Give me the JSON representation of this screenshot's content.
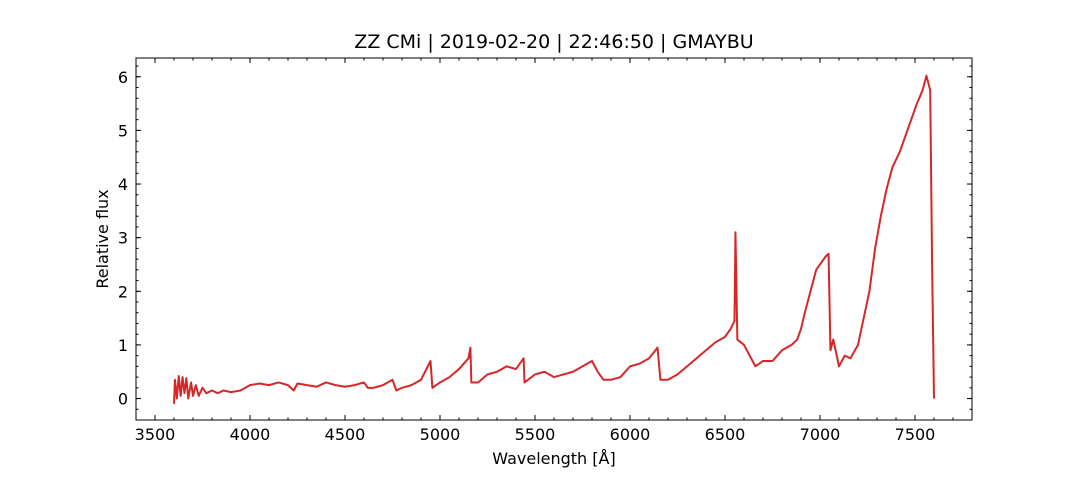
{
  "chart_data": {
    "type": "line",
    "title": "ZZ CMi | 2019-02-20 | 22:46:50 | GMAYBU",
    "x_label": "Wavelength [Å]",
    "y_label": "Relative flux",
    "x": [
      3600,
      3605,
      3615,
      3625,
      3635,
      3645,
      3655,
      3665,
      3675,
      3690,
      3700,
      3715,
      3730,
      3750,
      3770,
      3800,
      3830,
      3860,
      3900,
      3950,
      4000,
      4050,
      4100,
      4150,
      4200,
      4230,
      4250,
      4300,
      4350,
      4400,
      4450,
      4500,
      4550,
      4600,
      4620,
      4650,
      4700,
      4750,
      4770,
      4800,
      4850,
      4900,
      4950,
      4960,
      5000,
      5050,
      5100,
      5150,
      5160,
      5165,
      5200,
      5250,
      5300,
      5350,
      5400,
      5440,
      5445,
      5500,
      5550,
      5600,
      5650,
      5700,
      5750,
      5800,
      5830,
      5860,
      5900,
      5950,
      6000,
      6050,
      6100,
      6145,
      6160,
      6200,
      6250,
      6300,
      6350,
      6400,
      6450,
      6500,
      6530,
      6550,
      6555,
      6565,
      6600,
      6630,
      6660,
      6700,
      6750,
      6800,
      6850,
      6880,
      6900,
      6920,
      6950,
      6980,
      7000,
      7030,
      7045,
      7055,
      7070,
      7100,
      7130,
      7160,
      7200,
      7230,
      7260,
      7290,
      7320,
      7350,
      7380,
      7420,
      7450,
      7480,
      7510,
      7540,
      7560,
      7580,
      7590,
      7600
    ],
    "series": [
      {
        "name": "flux",
        "color": "#d62728",
        "values": [
          -0.1,
          0.35,
          0.0,
          0.42,
          0.05,
          0.4,
          0.1,
          0.38,
          0.0,
          0.3,
          0.05,
          0.25,
          0.05,
          0.2,
          0.1,
          0.15,
          0.1,
          0.15,
          0.12,
          0.15,
          0.25,
          0.28,
          0.25,
          0.3,
          0.25,
          0.15,
          0.28,
          0.25,
          0.22,
          0.3,
          0.25,
          0.22,
          0.25,
          0.3,
          0.2,
          0.2,
          0.25,
          0.35,
          0.15,
          0.2,
          0.25,
          0.35,
          0.7,
          0.2,
          0.3,
          0.4,
          0.55,
          0.75,
          0.95,
          0.3,
          0.3,
          0.45,
          0.5,
          0.6,
          0.55,
          0.75,
          0.3,
          0.45,
          0.5,
          0.4,
          0.45,
          0.5,
          0.6,
          0.7,
          0.5,
          0.35,
          0.35,
          0.4,
          0.6,
          0.65,
          0.75,
          0.95,
          0.35,
          0.35,
          0.45,
          0.6,
          0.75,
          0.9,
          1.05,
          1.15,
          1.3,
          1.45,
          3.1,
          1.1,
          1.0,
          0.8,
          0.6,
          0.7,
          0.7,
          0.9,
          1.0,
          1.1,
          1.3,
          1.6,
          2.0,
          2.4,
          2.5,
          2.65,
          2.7,
          0.9,
          1.1,
          0.6,
          0.8,
          0.75,
          1.0,
          1.5,
          2.0,
          2.8,
          3.4,
          3.9,
          4.3,
          4.6,
          4.9,
          5.2,
          5.5,
          5.75,
          6.02,
          5.75,
          2.5,
          0.0
        ]
      }
    ],
    "xlim": [
      3400,
      7800
    ],
    "ylim": [
      -0.4,
      6.35
    ],
    "xticks": [
      3500,
      4000,
      4500,
      5000,
      5500,
      6000,
      6500,
      7000,
      7500
    ],
    "yticks": [
      0,
      1,
      2,
      3,
      4,
      5,
      6
    ],
    "minor_divisions": 5
  }
}
